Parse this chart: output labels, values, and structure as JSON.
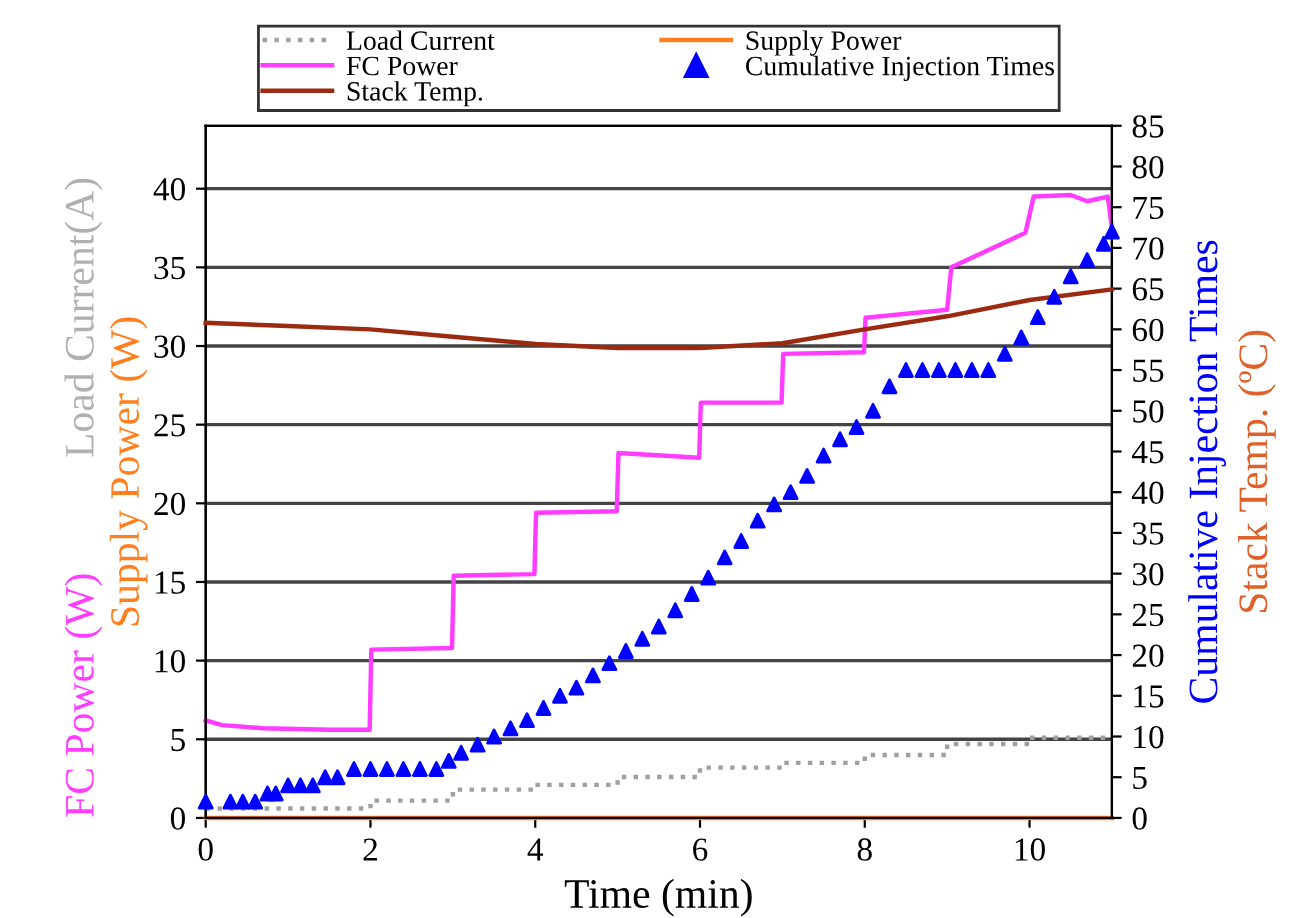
{
  "chart_data": {
    "type": "line",
    "xlabel": "Time (min)",
    "ylabel": "Supply Power (W)",
    "y2label": "Stack Temp. (ºC)",
    "annotations": [
      "FC Power (W)",
      "Load Current(A)",
      "Cumulative Injection Times"
    ],
    "xlim": [
      0,
      11
    ],
    "xticks": [
      0,
      2,
      4,
      6,
      8,
      10
    ],
    "ylim": [
      0,
      44
    ],
    "yticks": [
      0,
      5,
      10,
      15,
      20,
      25,
      30,
      35,
      40
    ],
    "y2lim": [
      0,
      85
    ],
    "y2ticks": [
      0,
      5,
      10,
      15,
      20,
      25,
      30,
      35,
      40,
      45,
      50,
      55,
      60,
      65,
      70,
      75,
      80,
      85
    ],
    "grid": "y",
    "legend": "top",
    "series": [
      {
        "name": "Load Current",
        "color": "#a0a0a0",
        "line_style": "dotted",
        "x": [
          0,
          2,
          2,
          3,
          3,
          4,
          4,
          5,
          5,
          6,
          6,
          7,
          7,
          8,
          8,
          9,
          9,
          10,
          10,
          11
        ],
        "values": [
          0.6,
          0.6,
          1.1,
          1.1,
          1.8,
          1.8,
          2.1,
          2.1,
          2.6,
          2.6,
          3.2,
          3.2,
          3.5,
          3.5,
          4.0,
          4.0,
          4.7,
          4.7,
          5.1,
          5.1
        ]
      },
      {
        "name": "Supply Power",
        "color": "#ff7f1e",
        "x": [
          0,
          11
        ],
        "values": [
          0,
          0
        ]
      },
      {
        "name": "FC Power",
        "color": "#ff3cff",
        "x": [
          0,
          0.2,
          0.7,
          1.5,
          1.99,
          2.01,
          2.99,
          3.01,
          3.99,
          4.01,
          4.99,
          5.01,
          5.99,
          6.01,
          6.99,
          7.01,
          7.99,
          8.01,
          9.0,
          9.05,
          9.95,
          10.05,
          10.5,
          10.7,
          10.95,
          11
        ],
        "values": [
          6.2,
          5.9,
          5.7,
          5.6,
          5.6,
          10.7,
          10.8,
          15.4,
          15.5,
          19.4,
          19.5,
          23.2,
          22.9,
          26.4,
          26.4,
          29.5,
          29.6,
          31.8,
          32.3,
          35.0,
          37.2,
          39.5,
          39.6,
          39.2,
          39.5,
          37.5
        ]
      },
      {
        "name": "Cumulative Injection Times",
        "color": "#0000ff",
        "type": "scatter",
        "marker": "triangle",
        "axis": "y2",
        "x": [
          0,
          0.3,
          0.45,
          0.6,
          0.75,
          0.85,
          1.0,
          1.15,
          1.3,
          1.45,
          1.6,
          1.8,
          2.0,
          2.2,
          2.4,
          2.6,
          2.8,
          2.95,
          3.1,
          3.3,
          3.5,
          3.7,
          3.9,
          4.1,
          4.3,
          4.5,
          4.7,
          4.9,
          5.1,
          5.3,
          5.5,
          5.7,
          5.9,
          6.1,
          6.3,
          6.5,
          6.7,
          6.9,
          7.1,
          7.3,
          7.5,
          7.7,
          7.9,
          8.1,
          8.3,
          8.5,
          8.7,
          8.9,
          9.1,
          9.3,
          9.5,
          9.7,
          9.9,
          10.1,
          10.3,
          10.5,
          10.7,
          10.9,
          11
        ],
        "values": [
          2,
          2,
          2,
          2,
          3,
          3,
          4,
          4,
          4,
          5,
          5,
          6,
          6,
          6,
          6,
          6,
          6,
          7,
          8,
          9,
          10,
          11,
          12,
          13.5,
          15,
          16,
          17.5,
          19,
          20.5,
          22,
          23.5,
          25.5,
          27.5,
          29.5,
          32,
          34,
          36.5,
          38.5,
          40,
          42,
          44.5,
          46.5,
          48,
          50,
          53,
          55,
          55,
          55,
          55,
          55,
          55,
          57,
          59,
          61.5,
          64,
          66.5,
          68.5,
          70.5,
          72
        ]
      },
      {
        "name": "Stack Temp.",
        "color": "#9b2a10",
        "axis": "y2",
        "x": [
          0,
          1,
          2,
          3,
          4,
          5,
          6,
          7,
          8,
          9,
          10,
          11
        ],
        "values": [
          60.8,
          60.4,
          60.0,
          59.1,
          58.2,
          57.7,
          57.7,
          58.3,
          60.0,
          61.6,
          63.6,
          64.9
        ]
      }
    ]
  }
}
